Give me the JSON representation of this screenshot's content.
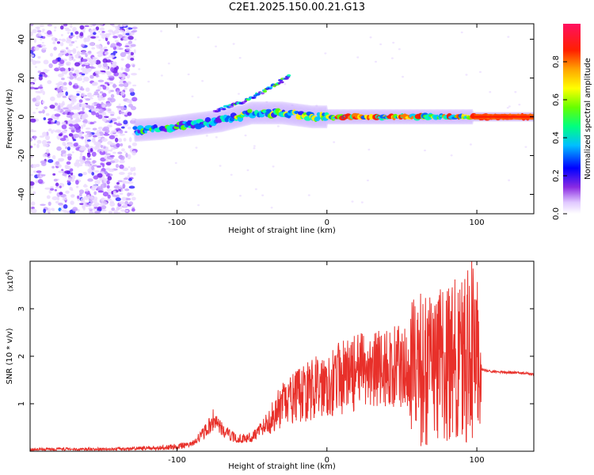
{
  "figure_title": "C2E1.2025.150.00.21.G13",
  "colors": {
    "snr_line": "#e8302a",
    "axis": "#000000"
  },
  "chart_data": [
    {
      "type": "heatmap",
      "title": "C2E1.2025.150.00.21.G13",
      "xlabel": "Height of straight line (km)",
      "ylabel": "Frequency (Hz)",
      "xlim": [
        -198,
        138
      ],
      "ylim": [
        -50,
        48
      ],
      "x_ticks": [
        -100,
        0,
        100
      ],
      "y_ticks": [
        -40,
        -20,
        0,
        20,
        40
      ],
      "colormap": "rainbow (white to violet, blue, cyan, green, yellow, orange, red, magenta)",
      "colorbar": {
        "label": "Normalized spectral amplitude",
        "range": [
          0,
          1
        ],
        "ticks": [
          0.0,
          0.2,
          0.4,
          0.6,
          0.8
        ]
      },
      "features": {
        "scatter_region_x": [
          -198,
          -128
        ],
        "main_track_x": [
          -128,
          138
        ],
        "track_frequency": [
          [
            -198,
            -2
          ],
          [
            -180,
            -3
          ],
          [
            -160,
            -4
          ],
          [
            -128,
            -7
          ],
          [
            -110,
            -6
          ],
          [
            -90,
            -4
          ],
          [
            -70,
            -2
          ],
          [
            -50,
            2
          ],
          [
            -30,
            2
          ],
          [
            -10,
            0
          ],
          [
            0,
            0
          ],
          [
            20,
            0
          ],
          [
            50,
            0
          ],
          [
            80,
            0
          ],
          [
            95,
            0
          ],
          [
            100,
            0
          ],
          [
            138,
            0
          ]
        ],
        "branch": [
          [
            -75,
            3
          ],
          [
            -55,
            8
          ],
          [
            -40,
            14
          ],
          [
            -25,
            21
          ]
        ]
      }
    },
    {
      "type": "line",
      "xlabel": "Height of straight line (km)",
      "ylabel": "SNR (10 * v/v)",
      "y_scale_label": "(x10",
      "y_scale_exp": "4",
      "xlim": [
        -198,
        138
      ],
      "ylim": [
        0,
        4
      ],
      "x_ticks": [
        -100,
        0,
        100
      ],
      "y_ticks": [
        1,
        2,
        3
      ],
      "envelope": [
        [
          -198,
          0.04
        ],
        [
          -180,
          0.05
        ],
        [
          -150,
          0.05
        ],
        [
          -130,
          0.06
        ],
        [
          -110,
          0.08
        ],
        [
          -90,
          0.15
        ],
        [
          -80,
          0.45
        ],
        [
          -75,
          0.7
        ],
        [
          -70,
          0.45
        ],
        [
          -60,
          0.25
        ],
        [
          -50,
          0.3
        ],
        [
          -40,
          0.6
        ],
        [
          -30,
          0.95
        ],
        [
          -20,
          1.15
        ],
        [
          -10,
          1.3
        ],
        [
          0,
          1.45
        ],
        [
          10,
          1.55
        ],
        [
          20,
          1.65
        ],
        [
          30,
          1.72
        ],
        [
          40,
          1.75
        ],
        [
          50,
          1.78
        ],
        [
          55,
          1.8
        ],
        [
          60,
          1.95
        ],
        [
          70,
          2.0
        ],
        [
          80,
          2.1
        ],
        [
          90,
          2.2
        ],
        [
          97,
          2.5
        ],
        [
          100,
          3.8
        ],
        [
          103,
          1.72
        ],
        [
          110,
          1.68
        ],
        [
          120,
          1.66
        ],
        [
          130,
          1.65
        ],
        [
          138,
          1.62
        ]
      ]
    }
  ]
}
